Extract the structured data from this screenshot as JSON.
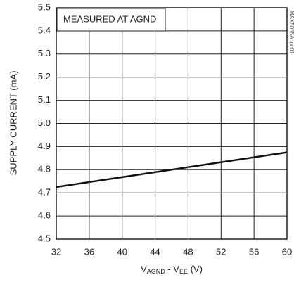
{
  "chart_data": {
    "type": "line",
    "annotation": "MEASURED AT AGND",
    "side_note": "MAX5055A toc01",
    "y_label": "SUPPLY CURRENT (mA)",
    "x_label_parts": [
      "V",
      "AGND",
      " - V",
      "EE",
      " (V)"
    ],
    "x": [
      32,
      60
    ],
    "series": [
      {
        "color": "#111111",
        "values": [
          4.725,
          4.875
        ]
      }
    ],
    "xlim": [
      32,
      60
    ],
    "xticks": [
      32,
      36,
      40,
      44,
      48,
      52,
      56,
      60
    ],
    "ylim": [
      4.5,
      5.5
    ],
    "yticks": [
      4.5,
      4.6,
      4.7,
      4.8,
      4.9,
      {
        "value": 5,
        "label": "5.0"
      },
      5.1,
      5.2,
      5.3,
      5.4,
      5.5
    ],
    "grid": true
  }
}
